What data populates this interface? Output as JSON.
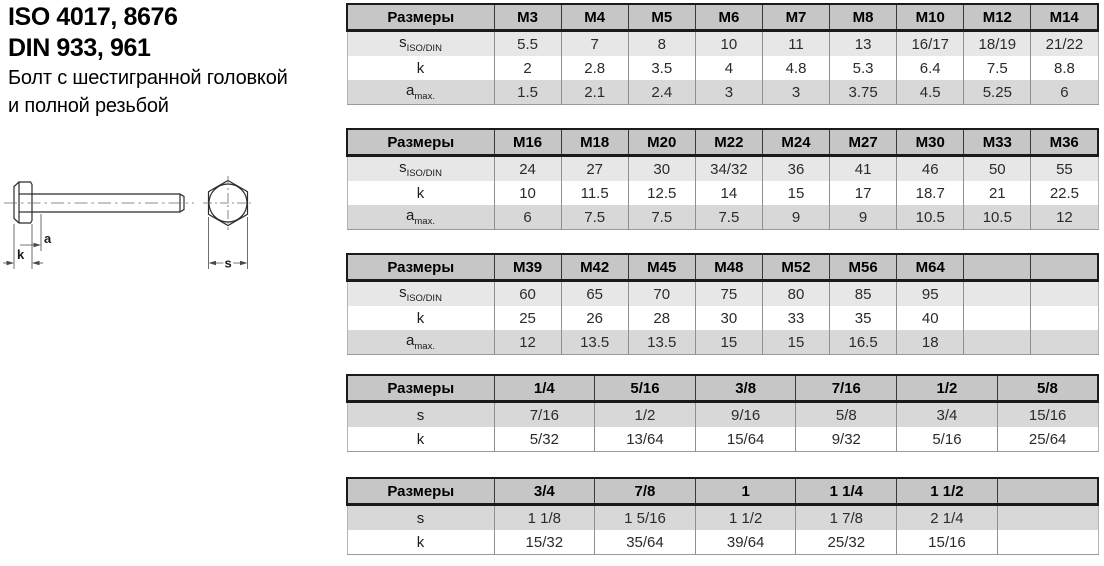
{
  "header": {
    "iso_line": "ISO 4017, 8676",
    "din_line": "DIN 933, 961",
    "description_line1": "Болт с шестигранной головкой",
    "description_line2": "и полной резьбой"
  },
  "drawing": {
    "dim_a_label": "a",
    "dim_k_label": "k",
    "dim_s_label": "s"
  },
  "colors": {
    "table_header_bg": "#c6c6c6",
    "row_shade_light": "#e7e7e7",
    "row_shade_mid": "#d8d8d8",
    "border_dark": "#1a1a1a",
    "border_gray": "#8f8f8f",
    "text_values": "#2b2b2b"
  },
  "tables": [
    {
      "header_label": "Размеры",
      "columns": [
        "M3",
        "M4",
        "M5",
        "M6",
        "M7",
        "M8",
        "M10",
        "M12",
        "M14"
      ],
      "rows": [
        {
          "label": "s",
          "sub": "ISO/DIN",
          "shade": "light",
          "values": [
            "5.5",
            "7",
            "8",
            "10",
            "11",
            "13",
            "16/17",
            "18/19",
            "21/22"
          ]
        },
        {
          "label": "k",
          "sub": "",
          "shade": "white",
          "values": [
            "2",
            "2.8",
            "3.5",
            "4",
            "4.8",
            "5.3",
            "6.4",
            "7.5",
            "8.8"
          ]
        },
        {
          "label": "a",
          "sub": "max.",
          "shade": "mid",
          "values": [
            "1.5",
            "2.1",
            "2.4",
            "3",
            "3",
            "3.75",
            "4.5",
            "5.25",
            "6"
          ]
        }
      ]
    },
    {
      "header_label": "Размеры",
      "columns": [
        "M16",
        "M18",
        "M20",
        "M22",
        "M24",
        "M27",
        "M30",
        "M33",
        "M36"
      ],
      "rows": [
        {
          "label": "s",
          "sub": "ISO/DIN",
          "shade": "light",
          "values": [
            "24",
            "27",
            "30",
            "34/32",
            "36",
            "41",
            "46",
            "50",
            "55"
          ]
        },
        {
          "label": "k",
          "sub": "",
          "shade": "white",
          "values": [
            "10",
            "11.5",
            "12.5",
            "14",
            "15",
            "17",
            "18.7",
            "21",
            "22.5"
          ]
        },
        {
          "label": "a",
          "sub": "max.",
          "shade": "mid",
          "values": [
            "6",
            "7.5",
            "7.5",
            "7.5",
            "9",
            "9",
            "10.5",
            "10.5",
            "12"
          ]
        }
      ]
    },
    {
      "header_label": "Размеры",
      "columns": [
        "M39",
        "M42",
        "M45",
        "M48",
        "M52",
        "M56",
        "M64",
        "",
        ""
      ],
      "rows": [
        {
          "label": "s",
          "sub": "ISO/DIN",
          "shade": "light",
          "values": [
            "60",
            "65",
            "70",
            "75",
            "80",
            "85",
            "95",
            "",
            ""
          ]
        },
        {
          "label": "k",
          "sub": "",
          "shade": "white",
          "values": [
            "25",
            "26",
            "28",
            "30",
            "33",
            "35",
            "40",
            "",
            ""
          ]
        },
        {
          "label": "a",
          "sub": "max.",
          "shade": "mid",
          "values": [
            "12",
            "13.5",
            "13.5",
            "15",
            "15",
            "16.5",
            "18",
            "",
            ""
          ]
        }
      ]
    },
    {
      "header_label": "Размеры",
      "columns": [
        "1/4",
        "5/16",
        "3/8",
        "7/16",
        "1/2",
        "5/8"
      ],
      "rows": [
        {
          "label": "s",
          "sub": "",
          "shade": "mid",
          "values": [
            "7/16",
            "1/2",
            "9/16",
            "5/8",
            "3/4",
            "15/16"
          ]
        },
        {
          "label": "k",
          "sub": "",
          "shade": "white",
          "values": [
            "5/32",
            "13/64",
            "15/64",
            "9/32",
            "5/16",
            "25/64"
          ]
        }
      ]
    },
    {
      "header_label": "Размеры",
      "columns": [
        "3/4",
        "7/8",
        "1",
        "1 1/4",
        "1 1/2",
        ""
      ],
      "rows": [
        {
          "label": "s",
          "sub": "",
          "shade": "mid",
          "values": [
            "1 1/8",
            "1 5/16",
            "1 1/2",
            "1 7/8",
            "2 1/4",
            ""
          ]
        },
        {
          "label": "k",
          "sub": "",
          "shade": "white",
          "values": [
            "15/32",
            "35/64",
            "39/64",
            "25/32",
            "15/16",
            ""
          ]
        }
      ]
    }
  ]
}
